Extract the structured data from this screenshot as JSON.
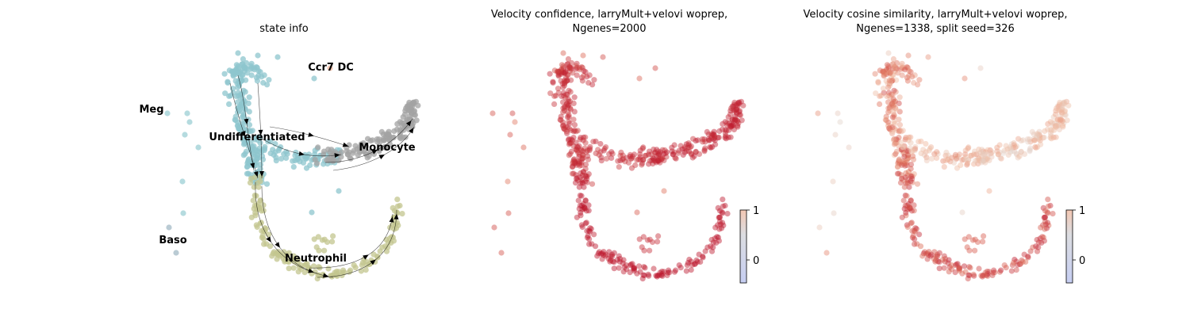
{
  "colors": {
    "undifferentiated": "#8ec6cd",
    "monocyte": "#a3a3a3",
    "neutrophil": "#c3c58f",
    "meg": "#9ccfd4",
    "baso": "#a3b9c5",
    "ccr7": "#f2b79d",
    "arrow": "#000000",
    "colorbar_low": "#c6cef2",
    "colorbar_high": "#f3c7b3"
  },
  "chart_data": [
    {
      "type": "scatter",
      "title": "state info",
      "clusters": [
        {
          "name": "Meg",
          "label_anchor": [
            -8.6,
            5.4
          ]
        },
        {
          "name": "Ccr7 DC",
          "label_anchor": [
            -2.3,
            6.6
          ]
        },
        {
          "name": "Undifferentiated",
          "label_anchor": [
            -5.4,
            3.6
          ]
        },
        {
          "name": "Monocyte",
          "label_anchor": [
            2.6,
            3.2
          ]
        },
        {
          "name": "Baso",
          "label_anchor": [
            -8.5,
            -1.7
          ]
        },
        {
          "name": "Neutrophil",
          "label_anchor": [
            -2.2,
            -2.4
          ]
        }
      ],
      "xlim": [
        -10,
        5
      ],
      "ylim": [
        -4,
        8
      ],
      "grid": false,
      "legend": "on data",
      "overlay": "velocity streamlines with arrows"
    },
    {
      "type": "scatter",
      "title_line1": "Velocity confidence, larryMult+velovi woprep,",
      "title_line2": "Ngenes=2000",
      "colormap": "coolwarm",
      "colorbar": {
        "min": -0.5,
        "max": 1,
        "ticks": [
          "1",
          "0"
        ],
        "tick_values": [
          1,
          0
        ]
      },
      "value_range_observed": [
        0.5,
        1.0
      ]
    },
    {
      "type": "scatter",
      "title_line1": "Velocity cosine similarity, larryMult+velovi woprep,",
      "title_line2": "Ngenes=1338, split seed=326",
      "colormap": "coolwarm",
      "colorbar": {
        "min": -0.5,
        "max": 1,
        "ticks": [
          "1",
          "0"
        ],
        "tick_values": [
          1,
          0
        ]
      },
      "value_range_observed": [
        -0.3,
        1.0
      ]
    }
  ]
}
